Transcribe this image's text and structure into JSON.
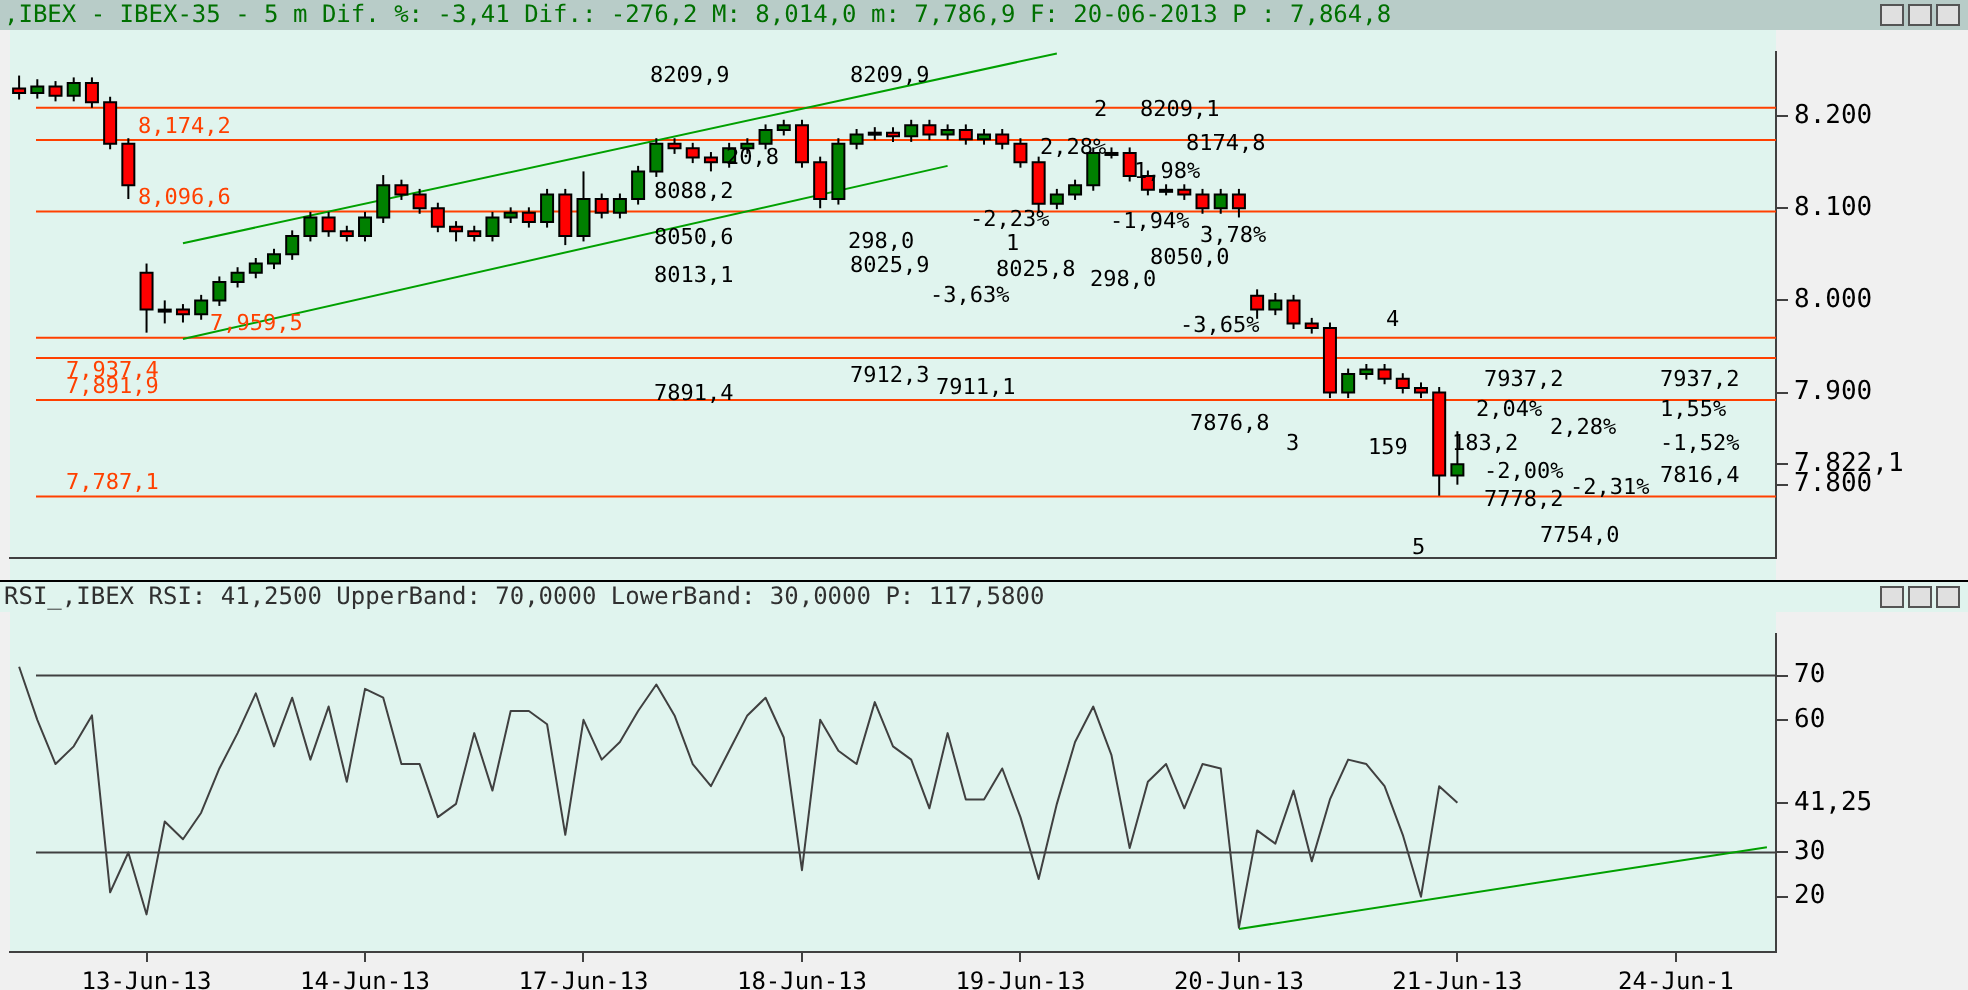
{
  "chart_data": [
    {
      "type": "candlestick",
      "title": ",IBEX - IBEX-35 - 5 m Dif. %: -3,41 Dif.: -276,2 M: 8,014,0 m: 7,786,9 F: 20-06-2013 P : 7,864,8",
      "categories": [
        null,
        null,
        null,
        null,
        null,
        null,
        null,
        null,
        null,
        null,
        null,
        null,
        null,
        null,
        null,
        null,
        null,
        null,
        null,
        null,
        null,
        null,
        null,
        null,
        null,
        null,
        null,
        null,
        null,
        null,
        null,
        null,
        null,
        null,
        null,
        null,
        null,
        null,
        null,
        null,
        null,
        null,
        null,
        null,
        null,
        null,
        null,
        null,
        null,
        null,
        null,
        null,
        null,
        null,
        null,
        null,
        null,
        null,
        null,
        null,
        null,
        null,
        null,
        null,
        null,
        null,
        null,
        null,
        null,
        null,
        null,
        null,
        null,
        null,
        null,
        null,
        null,
        null,
        null,
        null,
        null,
        null,
        null,
        null,
        null,
        null,
        null,
        null,
        null,
        null,
        null,
        null,
        null,
        null,
        null,
        null,
        null
      ],
      "ohlc": [
        [
          8230,
          8244,
          8218,
          8225
        ],
        [
          8225,
          8240,
          8219,
          8232
        ],
        [
          8232,
          8238,
          8216,
          8222
        ],
        [
          8222,
          8242,
          8216,
          8236
        ],
        [
          8236,
          8242,
          8209,
          8215
        ],
        [
          8215,
          8221,
          8164,
          8170
        ],
        [
          8170,
          8176,
          8110,
          8125
        ],
        [
          8030,
          8040,
          7965,
          7990
        ],
        [
          7990,
          8000,
          7975,
          7990
        ],
        [
          7990,
          7996,
          7976,
          7985
        ],
        [
          7985,
          8006,
          7979,
          8000
        ],
        [
          8000,
          8026,
          7994,
          8020
        ],
        [
          8020,
          8036,
          8014,
          8030
        ],
        [
          8030,
          8046,
          8024,
          8040
        ],
        [
          8040,
          8056,
          8034,
          8050
        ],
        [
          8050,
          8076,
          8044,
          8070
        ],
        [
          8070,
          8096,
          8064,
          8090
        ],
        [
          8090,
          8096,
          8069,
          8075
        ],
        [
          8075,
          8081,
          8064,
          8070
        ],
        [
          8070,
          8096,
          8064,
          8090
        ],
        [
          8090,
          8136,
          8084,
          8125
        ],
        [
          8125,
          8131,
          8109,
          8115
        ],
        [
          8115,
          8121,
          8094,
          8100
        ],
        [
          8100,
          8106,
          8074,
          8080
        ],
        [
          8080,
          8086,
          8064,
          8075
        ],
        [
          8075,
          8081,
          8064,
          8070
        ],
        [
          8070,
          8096,
          8064,
          8090
        ],
        [
          8090,
          8101,
          8084,
          8095
        ],
        [
          8095,
          8101,
          8079,
          8085
        ],
        [
          8085,
          8121,
          8079,
          8115
        ],
        [
          8115,
          8121,
          8060,
          8070
        ],
        [
          8070,
          8140,
          8064,
          8110
        ],
        [
          8110,
          8116,
          8089,
          8095
        ],
        [
          8095,
          8116,
          8089,
          8110
        ],
        [
          8110,
          8146,
          8104,
          8140
        ],
        [
          8140,
          8176,
          8134,
          8170
        ],
        [
          8170,
          8176,
          8159,
          8165
        ],
        [
          8165,
          8171,
          8149,
          8155
        ],
        [
          8155,
          8161,
          8140,
          8150
        ],
        [
          8150,
          8171,
          8144,
          8165
        ],
        [
          8165,
          8176,
          8159,
          8170
        ],
        [
          8170,
          8191,
          8164,
          8185
        ],
        [
          8185,
          8196,
          8179,
          8190
        ],
        [
          8190,
          8196,
          8144,
          8150
        ],
        [
          8150,
          8156,
          8100,
          8110
        ],
        [
          8110,
          8176,
          8104,
          8170
        ],
        [
          8170,
          8186,
          8164,
          8180
        ],
        [
          8180,
          8188,
          8174,
          8182
        ],
        [
          8182,
          8188,
          8172,
          8178
        ],
        [
          8178,
          8196,
          8172,
          8190
        ],
        [
          8190,
          8196,
          8174,
          8180
        ],
        [
          8180,
          8191,
          8174,
          8185
        ],
        [
          8185,
          8191,
          8169,
          8175
        ],
        [
          8175,
          8186,
          8169,
          8180
        ],
        [
          8180,
          8186,
          8164,
          8170
        ],
        [
          8170,
          8176,
          8144,
          8150
        ],
        [
          8150,
          8156,
          8095,
          8105
        ],
        [
          8105,
          8121,
          8099,
          8115
        ],
        [
          8115,
          8131,
          8109,
          8125
        ],
        [
          8125,
          8166,
          8119,
          8160
        ],
        [
          8160,
          8166,
          8154,
          8160
        ],
        [
          8160,
          8166,
          8129,
          8135
        ],
        [
          8135,
          8141,
          8114,
          8120
        ],
        [
          8120,
          8126,
          8114,
          8120
        ],
        [
          8120,
          8126,
          8109,
          8115
        ],
        [
          8115,
          8121,
          8094,
          8100
        ],
        [
          8100,
          8121,
          8094,
          8115
        ],
        [
          8115,
          8121,
          8090,
          8100
        ],
        [
          8005,
          8012,
          7980,
          7990
        ],
        [
          7990,
          8008,
          7984,
          8000
        ],
        [
          8000,
          8006,
          7969,
          7975
        ],
        [
          7975,
          7981,
          7964,
          7970
        ],
        [
          7970,
          7976,
          7894,
          7900
        ],
        [
          7900,
          7926,
          7894,
          7920
        ],
        [
          7920,
          7931,
          7914,
          7925
        ],
        [
          7925,
          7931,
          7909,
          7915
        ],
        [
          7915,
          7921,
          7899,
          7905
        ],
        [
          7905,
          7911,
          7894,
          7900
        ],
        [
          7900,
          7906,
          7788,
          7810
        ],
        [
          7810,
          7858,
          7800,
          7822.1
        ],
        null,
        null,
        null,
        null,
        null,
        null,
        null,
        null,
        null,
        null,
        null,
        null,
        null,
        null,
        null,
        null,
        null
      ],
      "colors": [
        "#ff0000",
        "#008000",
        "#ff0000",
        "#008000",
        "#ff0000",
        "#ff0000",
        "#ff0000",
        "#ff0000",
        "#008000",
        "#ff0000",
        "#008000",
        "#008000",
        "#008000",
        "#008000",
        "#008000",
        "#008000",
        "#008000",
        "#ff0000",
        "#ff0000",
        "#008000",
        "#008000",
        "#ff0000",
        "#ff0000",
        "#ff0000",
        "#ff0000",
        "#ff0000",
        "#008000",
        "#008000",
        "#ff0000",
        "#008000",
        "#ff0000",
        "#008000",
        "#ff0000",
        "#008000",
        "#008000",
        "#008000",
        "#ff0000",
        "#ff0000",
        "#ff0000",
        "#008000",
        "#008000",
        "#008000",
        "#008000",
        "#ff0000",
        "#ff0000",
        "#008000",
        "#008000",
        "#008000",
        "#ff0000",
        "#008000",
        "#ff0000",
        "#008000",
        "#ff0000",
        "#008000",
        "#ff0000",
        "#ff0000",
        "#ff0000",
        "#008000",
        "#008000",
        "#008000",
        "#008000",
        "#ff0000",
        "#ff0000",
        "#008000",
        "#ff0000",
        "#ff0000",
        "#008000",
        "#ff0000",
        "#ff0000",
        "#008000",
        "#ff0000",
        "#ff0000",
        "#ff0000",
        "#008000",
        "#008000",
        "#ff0000",
        "#ff0000",
        "#ff0000",
        "#ff0000",
        "#008000",
        null,
        null,
        null,
        null,
        null,
        null,
        null,
        null,
        null,
        null,
        null,
        null,
        null,
        null,
        null,
        null,
        null
      ],
      "series": [
        {
          "type": "line",
          "color": "#00a000",
          "values": [
            null,
            null,
            null,
            null,
            null,
            null,
            null,
            null,
            null,
            8062,
            null,
            null,
            null,
            null,
            null,
            null,
            null,
            null,
            null,
            null,
            null,
            null,
            null,
            null,
            null,
            null,
            null,
            null,
            null,
            null,
            null,
            null,
            null,
            null,
            null,
            null,
            null,
            null,
            null,
            null,
            null,
            null,
            null,
            null,
            null,
            null,
            null,
            null,
            null,
            null,
            null,
            null,
            null,
            null,
            null,
            null,
            null,
            8268,
            null,
            null,
            null,
            null,
            null,
            null,
            null,
            null,
            null,
            null,
            null,
            null,
            null,
            null,
            null,
            null,
            null,
            null,
            null,
            null,
            null,
            null,
            null,
            null,
            null,
            null,
            null,
            null,
            null,
            null,
            null,
            null,
            null,
            null,
            null,
            null,
            null,
            null,
            null
          ]
        },
        {
          "type": "line",
          "color": "#00a000",
          "values": [
            null,
            null,
            null,
            null,
            null,
            null,
            null,
            null,
            null,
            7958,
            null,
            null,
            null,
            null,
            null,
            null,
            null,
            null,
            null,
            null,
            null,
            null,
            null,
            null,
            null,
            null,
            null,
            null,
            null,
            null,
            null,
            null,
            null,
            null,
            null,
            null,
            null,
            null,
            null,
            null,
            null,
            null,
            null,
            null,
            null,
            null,
            null,
            null,
            null,
            null,
            null,
            8146,
            null,
            null,
            null,
            null,
            null,
            null,
            null,
            null,
            null,
            null,
            null,
            null,
            null,
            null,
            null,
            null,
            null,
            null,
            null,
            null,
            null,
            null,
            null,
            null,
            null,
            null,
            null,
            null,
            null,
            null,
            null,
            null,
            null,
            null,
            null,
            null,
            null,
            null,
            null,
            null,
            null,
            null,
            null,
            null,
            null
          ]
        }
      ],
      "ylim": [
        7720,
        8270
      ],
      "yticks": [
        {
          "value": 7800,
          "label": "7.800"
        },
        {
          "value": 7822.1,
          "label": "7.822,1"
        },
        {
          "value": 7900,
          "label": "7.900"
        },
        {
          "value": 8000,
          "label": "8.000"
        },
        {
          "value": 8100,
          "label": "8.100"
        },
        {
          "value": 8200,
          "label": "8.200"
        }
      ],
      "tick_labels": "y",
      "grid": false,
      "legend": false,
      "ref_lines": [
        {
          "axis": "y",
          "value": 8209.1,
          "color": "#ff4000"
        },
        {
          "axis": "y",
          "value": 8174.2,
          "label": "8,174,2",
          "color": "#ff4000"
        },
        {
          "axis": "y",
          "value": 8096.6,
          "label": "8,096,6",
          "color": "#ff4000"
        },
        {
          "axis": "y",
          "value": 7959.5,
          "label": "7,959,5",
          "color": "#ff4000"
        },
        {
          "axis": "y",
          "value": 7937.4,
          "label": "7,937,4",
          "color": "#ff4000"
        },
        {
          "axis": "y",
          "value": 7891.9,
          "label": "7,891,9",
          "color": "#ff4000"
        },
        {
          "axis": "y",
          "value": 7787.1,
          "label": "7,787,1",
          "color": "#ff4000"
        }
      ],
      "annotations": [
        "8209,9",
        "8088,2",
        "8050,6",
        "8013,1",
        "7891,4",
        "20,8",
        "8209,9",
        "298,0",
        "8025,9",
        "-3,63%",
        "7912,3",
        "7911,1",
        "2,28%",
        "-2,23%",
        "1",
        "8025,8",
        "2",
        "298,0",
        "8209,1",
        "8174,8",
        "1,98%",
        "-1,94%",
        "3,78%",
        "8050,0",
        "-3,65%",
        "7876,8",
        "3",
        "4",
        "159",
        "183,2",
        "5",
        "7937,2",
        "2,04%",
        "2,28%",
        "-2,00%",
        "-2,31%",
        "7778,2",
        "7754,0",
        "7937,2",
        "1,55%",
        "-1,52%",
        "7816,4"
      ]
    },
    {
      "type": "line",
      "title": "RSI_,IBEX RSI: 41,2500 UpperBand: 70,0000 LowerBand: 30,0000 P: 117,5800",
      "categories": [
        null,
        null,
        null,
        null,
        null,
        null,
        null,
        "13-Jun-13",
        null,
        null,
        null,
        null,
        null,
        null,
        null,
        null,
        null,
        null,
        null,
        "14-Jun-13",
        null,
        null,
        null,
        null,
        null,
        null,
        null,
        null,
        null,
        null,
        null,
        "17-Jun-13",
        null,
        null,
        null,
        null,
        null,
        null,
        null,
        null,
        null,
        null,
        null,
        "18-Jun-13",
        null,
        null,
        null,
        null,
        null,
        null,
        null,
        null,
        null,
        null,
        null,
        "19-Jun-13",
        null,
        null,
        null,
        null,
        null,
        null,
        null,
        null,
        null,
        null,
        null,
        "20-Jun-13",
        null,
        null,
        null,
        null,
        null,
        null,
        null,
        null,
        null,
        null,
        null,
        "21-Jun-13",
        null,
        null,
        null,
        null,
        null,
        null,
        null,
        null,
        null,
        null,
        null,
        "24-Jun-1",
        null,
        null,
        null,
        null,
        null
      ],
      "series": [
        {
          "type": "line",
          "color": "#404040",
          "values": [
            72,
            60,
            50,
            54,
            61,
            21,
            30,
            16,
            37,
            33,
            39,
            49,
            57,
            66,
            54,
            65,
            51,
            63,
            46,
            67,
            65,
            50,
            50,
            38,
            41,
            57,
            44,
            62,
            62,
            59,
            34,
            60,
            51,
            55,
            62,
            68,
            61,
            50,
            45,
            53,
            61,
            65,
            56,
            26,
            60,
            53,
            50,
            64,
            54,
            51,
            40,
            57,
            42,
            42,
            49,
            38,
            24,
            41,
            55,
            63,
            52,
            31,
            46,
            50,
            40,
            50,
            49,
            13,
            35,
            32,
            44,
            28,
            42,
            51,
            50,
            45,
            34,
            20,
            45,
            41.25,
            null,
            null,
            null,
            null,
            null,
            null,
            null,
            null,
            null,
            null,
            null,
            null,
            null,
            null,
            null,
            null,
            null
          ]
        },
        {
          "type": "line",
          "color": "#00a000",
          "values": [
            null,
            null,
            null,
            null,
            null,
            null,
            null,
            null,
            null,
            null,
            null,
            null,
            null,
            null,
            null,
            null,
            null,
            null,
            null,
            null,
            null,
            null,
            null,
            null,
            null,
            null,
            null,
            null,
            null,
            null,
            null,
            null,
            null,
            null,
            null,
            null,
            null,
            null,
            null,
            null,
            null,
            null,
            null,
            null,
            null,
            null,
            null,
            null,
            null,
            null,
            null,
            null,
            null,
            null,
            null,
            null,
            null,
            null,
            null,
            null,
            null,
            null,
            null,
            null,
            null,
            null,
            null,
            12.7,
            null,
            null,
            null,
            null,
            null,
            null,
            null,
            null,
            null,
            null,
            null,
            null,
            null,
            null,
            null,
            null,
            null,
            null,
            null,
            null,
            null,
            null,
            null,
            null,
            null,
            null,
            null,
            null,
            31.2
          ]
        }
      ],
      "ylim": [
        7.5,
        79.5
      ],
      "yticks": [
        20,
        30,
        {
          "value": 41.25,
          "label": "41,25"
        },
        60,
        70
      ],
      "grid": false,
      "legend": false,
      "ref_lines": [
        {
          "axis": "y",
          "value": 70,
          "color": "#404040"
        },
        {
          "axis": "y",
          "value": 30,
          "color": "#404040"
        }
      ]
    }
  ]
}
